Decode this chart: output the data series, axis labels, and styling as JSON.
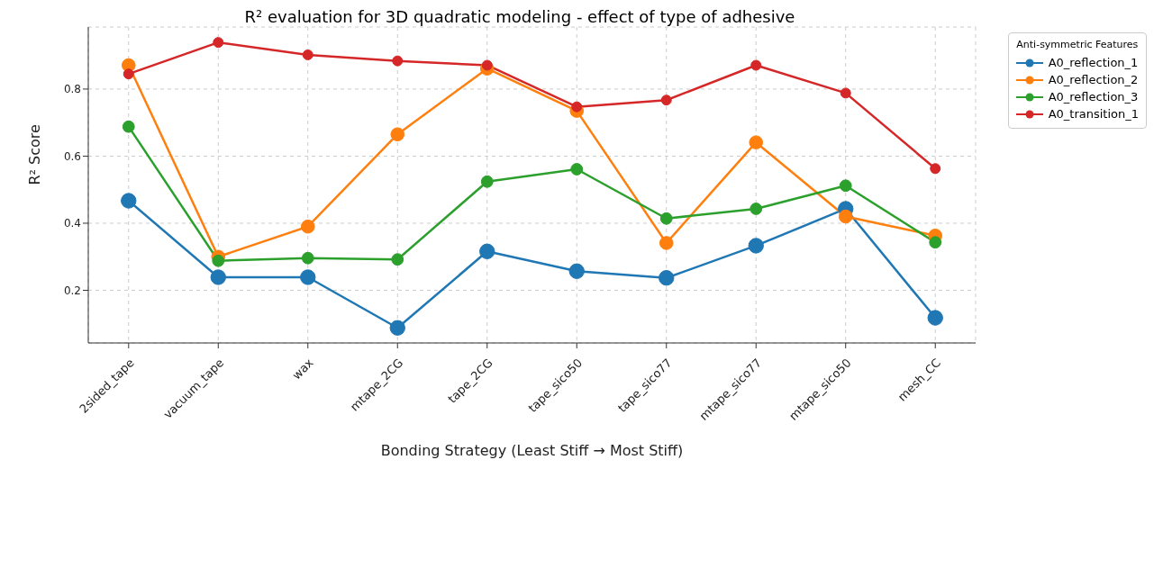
{
  "chart_data": {
    "type": "line",
    "title": "R² evaluation for 3D quadratic modeling - effect of type of adhesive",
    "xlabel": "Bonding Strategy (Least Stiff → Most Stiff)",
    "ylabel": "R² Score",
    "legend_title": "Anti-symmetric Features",
    "categories": [
      "2sided_tape",
      "vacuum_tape",
      "wax",
      "mtape_2CG",
      "tape_2CG",
      "tape_sico50",
      "tape_sico77",
      "mtape_sico77",
      "mtape_sico50",
      "mesh_CC"
    ],
    "series": [
      {
        "name": "A0_reflection_1",
        "color": "#1f77b4",
        "values": [
          0.467,
          0.239,
          0.239,
          0.088,
          0.316,
          0.257,
          0.237,
          0.333,
          0.443,
          0.118
        ]
      },
      {
        "name": "A0_reflection_2",
        "color": "#ff7f0e",
        "values": [
          0.871,
          0.3,
          0.39,
          0.665,
          0.861,
          0.735,
          0.341,
          0.641,
          0.42,
          0.363
        ]
      },
      {
        "name": "A0_reflection_3",
        "color": "#2ca02c",
        "values": [
          0.688,
          0.288,
          0.296,
          0.292,
          0.524,
          0.561,
          0.414,
          0.443,
          0.512,
          0.343
        ]
      },
      {
        "name": "A0_transition_1",
        "color": "#d62728",
        "values": [
          0.845,
          0.939,
          0.902,
          0.884,
          0.871,
          0.747,
          0.767,
          0.871,
          0.788,
          0.563
        ]
      }
    ],
    "ylim": [
      0.043,
      0.985
    ],
    "yticks": [
      0.2,
      0.4,
      0.6,
      0.8
    ],
    "grid": true,
    "legend": "top right",
    "marker": "circle",
    "line_style": "solid"
  }
}
